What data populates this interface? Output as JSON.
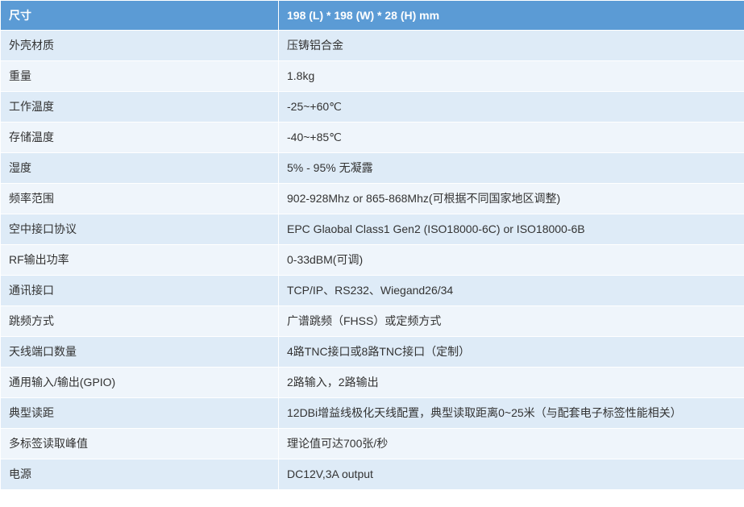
{
  "table": {
    "header": {
      "label": "尺寸",
      "value": "198 (L) * 198 (W) * 28 (H) mm"
    },
    "header_bg": "#5b9bd5",
    "header_fg": "#ffffff",
    "row_odd_bg": "#deebf7",
    "row_even_bg": "#eff5fb",
    "border_color": "#ffffff",
    "font_size": 14,
    "label_col_width": 345,
    "value_col_width": 578,
    "rows": [
      {
        "label": "外壳材质",
        "value": "压铸铝合金"
      },
      {
        "label": "重量",
        "value": "1.8kg"
      },
      {
        "label": "工作温度",
        "value": "-25~+60℃"
      },
      {
        "label": "存储温度",
        "value": "-40~+85℃"
      },
      {
        "label": "湿度",
        "value": "5% - 95% 无凝露"
      },
      {
        "label": "频率范围",
        "value": "902-928Mhz or 865-868Mhz(可根据不同国家地区调整)"
      },
      {
        "label": "空中接口协议",
        "value": "EPC Glaobal Class1 Gen2 (ISO18000-6C) or ISO18000-6B"
      },
      {
        "label": "RF输出功率",
        "value": "0-33dBM(可调)"
      },
      {
        "label": "通讯接口",
        "value": "TCP/IP、RS232、Wiegand26/34"
      },
      {
        "label": "跳频方式",
        "value": "广谱跳频（FHSS）或定频方式"
      },
      {
        "label": "天线端口数量",
        "value": "4路TNC接口或8路TNC接口（定制）"
      },
      {
        "label": "通用输入/输出(GPIO)",
        "value": "2路输入，2路输出"
      },
      {
        "label": "典型读距",
        "value": "12DBi增益线极化天线配置，典型读取距离0~25米（与配套电子标签性能相关）"
      },
      {
        "label": "多标签读取峰值",
        "value": "理论值可达700张/秒"
      },
      {
        "label": "电源",
        "value": "DC12V,3A output"
      }
    ]
  }
}
